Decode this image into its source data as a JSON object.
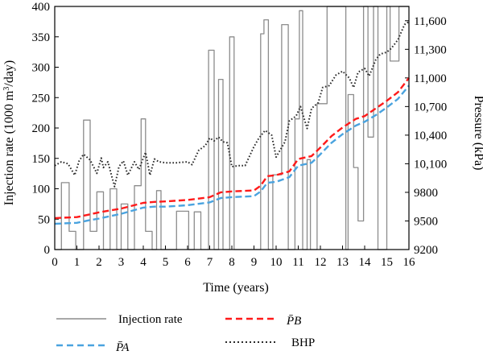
{
  "chart_data": {
    "type": "line",
    "xlabel": "Time (years)",
    "ylabel_left": "Injection rate (1000 m³/day)",
    "ylabel_right": "Pressure (kPa)",
    "xlim": [
      0,
      16
    ],
    "ylim_left": [
      0,
      400
    ],
    "ylim_right": [
      9200,
      11750
    ],
    "x_ticks": [
      "0",
      "1",
      "2",
      "3",
      "4",
      "5",
      "6",
      "7",
      "8",
      "9",
      "10",
      "11",
      "12",
      "13",
      "14",
      "15",
      "16"
    ],
    "y_left_ticks": [
      "0",
      "50",
      "100",
      "150",
      "200",
      "250",
      "300",
      "350",
      "400"
    ],
    "y_right_ticks": [
      "9200",
      "9500",
      "9800",
      "10,100",
      "10,400",
      "10,700",
      "11,000",
      "11,300",
      "11,600"
    ],
    "legend_position": "bottom",
    "series": [
      {
        "name": "Injection rate",
        "axis": "left",
        "color": "#8c8c8c",
        "style": "solid",
        "x": [
          0,
          0.3,
          0.3,
          0.65,
          0.65,
          0.95,
          0.95,
          1.3,
          1.3,
          1.6,
          1.6,
          1.9,
          1.9,
          2.2,
          2.2,
          2.5,
          2.5,
          2.8,
          2.8,
          3.0,
          3.0,
          3.3,
          3.3,
          3.6,
          3.6,
          3.9,
          3.9,
          4.1,
          4.1,
          4.4,
          4.4,
          4.6,
          4.6,
          4.8,
          4.8,
          5.5,
          5.5,
          6.05,
          6.05,
          6.3,
          6.3,
          6.6,
          6.6,
          6.95,
          6.95,
          7.2,
          7.2,
          7.4,
          7.4,
          7.6,
          7.6,
          7.9,
          7.9,
          8.1,
          8.1,
          8.35,
          8.35,
          9.3,
          9.3,
          9.45,
          9.45,
          9.65,
          9.65,
          9.85,
          9.85,
          10.25,
          10.25,
          10.55,
          10.55,
          10.85,
          10.85,
          11.05,
          11.05,
          11.2,
          11.2,
          11.4,
          11.4,
          11.55,
          11.55,
          11.85,
          11.85,
          12.3,
          12.3,
          13.15,
          13.15,
          13.25,
          13.25,
          13.5,
          13.5,
          13.7,
          13.7,
          13.95,
          13.95,
          14.15,
          14.15,
          14.4,
          14.4,
          14.6,
          14.6,
          15.0,
          15.0,
          15.15,
          15.15,
          15.55,
          15.55,
          16.0
        ],
        "values": [
          0,
          0,
          110,
          110,
          30,
          30,
          0,
          0,
          213,
          213,
          30,
          30,
          95,
          95,
          0,
          0,
          100,
          100,
          0,
          0,
          75,
          75,
          0,
          0,
          105,
          105,
          215,
          215,
          30,
          30,
          0,
          0,
          97,
          97,
          0,
          0,
          63,
          63,
          0,
          0,
          62,
          62,
          0,
          0,
          328,
          328,
          0,
          0,
          280,
          280,
          0,
          0,
          350,
          350,
          0,
          0,
          0,
          0,
          355,
          355,
          378,
          378,
          0,
          0,
          123,
          123,
          370,
          370,
          0,
          0,
          215,
          215,
          393,
          393,
          0,
          0,
          148,
          148,
          0,
          0,
          240,
          240,
          400,
          400,
          0,
          0,
          255,
          255,
          135,
          135,
          47,
          47,
          400,
          400,
          185,
          185,
          400,
          400,
          0,
          0,
          400,
          400,
          310,
          310,
          400,
          400
        ]
      },
      {
        "name": "P̄B",
        "axis": "right",
        "color": "#ff1a1a",
        "style": "dashed",
        "x": [
          0,
          1,
          1.5,
          2,
          3,
          4,
          4.5,
          5,
          6,
          7,
          7.5,
          8,
          9,
          9.3,
          9.6,
          10,
          10.6,
          11,
          11.6,
          12,
          12.5,
          13,
          13.6,
          14,
          14.5,
          15,
          15.5,
          16
        ],
        "values": [
          9530,
          9540,
          9565,
          9590,
          9630,
          9690,
          9700,
          9705,
          9720,
          9750,
          9800,
          9810,
          9820,
          9870,
          9970,
          9980,
          10020,
          10150,
          10180,
          10270,
          10390,
          10480,
          10570,
          10600,
          10680,
          10760,
          10850,
          11000
        ]
      },
      {
        "name": "P̄A",
        "axis": "right",
        "color": "#4aa3df",
        "style": "dashed",
        "x": [
          0,
          1,
          1.5,
          2,
          3,
          4,
          4.5,
          5,
          6,
          7,
          7.5,
          8,
          9,
          9.3,
          9.6,
          10,
          10.6,
          11,
          11.6,
          12,
          12.5,
          13,
          13.6,
          14,
          14.5,
          15,
          15.5,
          16
        ],
        "values": [
          9470,
          9480,
          9505,
          9525,
          9575,
          9640,
          9650,
          9650,
          9665,
          9695,
          9740,
          9750,
          9760,
          9810,
          9900,
          9910,
          9960,
          10080,
          10110,
          10200,
          10320,
          10410,
          10500,
          10540,
          10610,
          10690,
          10780,
          10920
        ]
      },
      {
        "name": "BHP",
        "axis": "right",
        "color": "#2b2b2b",
        "style": "dotted",
        "x": [
          0,
          0.3,
          0.6,
          0.9,
          1.1,
          1.3,
          1.6,
          1.9,
          2.1,
          2.2,
          2.4,
          2.7,
          2.9,
          3.1,
          3.3,
          3.6,
          3.8,
          4.1,
          4.3,
          4.5,
          4.7,
          5.0,
          5.5,
          6.0,
          6.2,
          6.5,
          6.8,
          7.0,
          7.2,
          7.4,
          7.6,
          7.8,
          8.0,
          8.3,
          8.6,
          9.0,
          9.2,
          9.5,
          9.8,
          10.0,
          10.4,
          10.6,
          10.9,
          11.1,
          11.4,
          11.6,
          11.9,
          12.1,
          12.4,
          12.7,
          13.0,
          13.3,
          13.5,
          13.7,
          14.0,
          14.2,
          14.5,
          14.7,
          15.0,
          15.2,
          15.5,
          15.8,
          16.0
        ],
        "values": [
          10080,
          10120,
          10100,
          9980,
          10130,
          10200,
          10140,
          10000,
          10160,
          10060,
          10120,
          9860,
          10070,
          10130,
          9980,
          10120,
          10040,
          10220,
          9980,
          10150,
          10120,
          10110,
          10110,
          10120,
          10090,
          10240,
          10290,
          10370,
          10340,
          10380,
          10330,
          10320,
          10070,
          10080,
          10080,
          10280,
          10360,
          10450,
          10400,
          10170,
          10330,
          10550,
          10600,
          10700,
          10470,
          10680,
          10740,
          10900,
          10920,
          11030,
          11070,
          11000,
          10900,
          11060,
          11100,
          11020,
          11190,
          11250,
          11270,
          11310,
          11400,
          11560,
          11590
        ]
      }
    ]
  }
}
